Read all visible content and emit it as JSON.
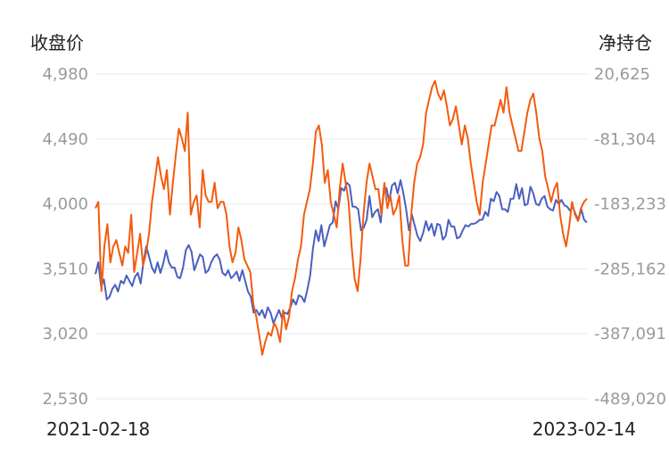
{
  "chart_data": {
    "type": "line",
    "left_axis_title": "收盘价",
    "right_axis_title": "净持仓",
    "left_ticks": [
      "4,980",
      "4,490",
      "4,000",
      "3,510",
      "3,020",
      "2,530"
    ],
    "right_ticks": [
      "20,625",
      "-81,304",
      "-183,233",
      "-285,162",
      "-387,091",
      "-489,020"
    ],
    "x_start_label": "2021-02-18",
    "x_end_label": "2023-02-14",
    "left_ylim": [
      2530,
      4980
    ],
    "right_ylim": [
      -489020,
      20625
    ],
    "grid": true,
    "series": [
      {
        "axis": "left",
        "color": "#4a5fc1",
        "values": [
          3470,
          3560,
          3380,
          3430,
          3280,
          3300,
          3360,
          3390,
          3340,
          3420,
          3400,
          3460,
          3420,
          3380,
          3450,
          3480,
          3400,
          3560,
          3680,
          3600,
          3520,
          3480,
          3560,
          3480,
          3550,
          3650,
          3560,
          3520,
          3520,
          3450,
          3440,
          3520,
          3650,
          3690,
          3640,
          3500,
          3560,
          3620,
          3600,
          3480,
          3500,
          3560,
          3600,
          3620,
          3580,
          3480,
          3460,
          3500,
          3440,
          3460,
          3490,
          3420,
          3500,
          3420,
          3340,
          3300,
          3180,
          3200,
          3160,
          3200,
          3140,
          3220,
          3180,
          3100,
          3150,
          3200,
          3140,
          3180,
          3170,
          3220,
          3280,
          3240,
          3310,
          3300,
          3260,
          3350,
          3460,
          3660,
          3800,
          3720,
          3840,
          3680,
          3760,
          3840,
          3860,
          4020,
          3960,
          4120,
          4100,
          4160,
          4140,
          3980,
          3980,
          3960,
          3800,
          3820,
          3880,
          4060,
          3900,
          3940,
          3960,
          3860,
          4080,
          4120,
          4020,
          4140,
          4160,
          4080,
          4180,
          4080,
          3960,
          3800,
          3920,
          3840,
          3760,
          3720,
          3780,
          3870,
          3800,
          3850,
          3760,
          3850,
          3840,
          3730,
          3760,
          3880,
          3830,
          3830,
          3740,
          3750,
          3800,
          3840,
          3830,
          3850,
          3850,
          3860,
          3880,
          3880,
          3940,
          3910,
          4040,
          4020,
          4090,
          4060,
          3960,
          3960,
          3940,
          4040,
          4040,
          4150,
          4040,
          4120,
          3990,
          4000,
          4130,
          4080,
          4000,
          3990,
          4040,
          4060,
          3980,
          3960,
          3950,
          4030,
          4000,
          4030,
          3990,
          3980,
          3950,
          3980,
          3920,
          3880,
          3960,
          3880,
          3860
        ]
      },
      {
        "axis": "right",
        "color": "#f35b0e",
        "values": [
          -190000,
          -180000,
          -320000,
          -250000,
          -215000,
          -275000,
          -250000,
          -240000,
          -260000,
          -280000,
          -250000,
          -260000,
          -200000,
          -290000,
          -260000,
          -230000,
          -280000,
          -260000,
          -230000,
          -180000,
          -145000,
          -110000,
          -140000,
          -160000,
          -130000,
          -200000,
          -150000,
          -105000,
          -65000,
          -80000,
          -100000,
          -40000,
          -200000,
          -180000,
          -170000,
          -220000,
          -130000,
          -170000,
          -180000,
          -180000,
          -150000,
          -190000,
          -180000,
          -180000,
          -200000,
          -250000,
          -275000,
          -260000,
          -220000,
          -240000,
          -270000,
          -280000,
          -290000,
          -340000,
          -360000,
          -390000,
          -420000,
          -400000,
          -385000,
          -390000,
          -370000,
          -380000,
          -400000,
          -350000,
          -380000,
          -360000,
          -320000,
          -300000,
          -270000,
          -250000,
          -200000,
          -180000,
          -160000,
          -120000,
          -70000,
          -60000,
          -90000,
          -150000,
          -130000,
          -180000,
          -200000,
          -220000,
          -160000,
          -120000,
          -150000,
          -180000,
          -250000,
          -300000,
          -320000,
          -270000,
          -200000,
          -150000,
          -120000,
          -140000,
          -160000,
          -160000,
          -200000,
          -150000,
          -190000,
          -170000,
          -200000,
          -190000,
          -170000,
          -240000,
          -280000,
          -280000,
          -200000,
          -150000,
          -120000,
          -110000,
          -90000,
          -40000,
          -20000,
          0,
          10000,
          -10000,
          -20000,
          -5000,
          -30000,
          -60000,
          -50000,
          -30000,
          -60000,
          -90000,
          -60000,
          -80000,
          -120000,
          -150000,
          -180000,
          -200000,
          -150000,
          -120000,
          -90000,
          -60000,
          -60000,
          -40000,
          -20000,
          -40000,
          0,
          -40000,
          -60000,
          -80000,
          -100000,
          -100000,
          -70000,
          -40000,
          -20000,
          -10000,
          -40000,
          -80000,
          -100000,
          -140000,
          -160000,
          -180000,
          -160000,
          -150000,
          -200000,
          -230000,
          -250000,
          -220000,
          -180000,
          -200000,
          -210000,
          -190000,
          -180000,
          -175000
        ]
      }
    ]
  }
}
